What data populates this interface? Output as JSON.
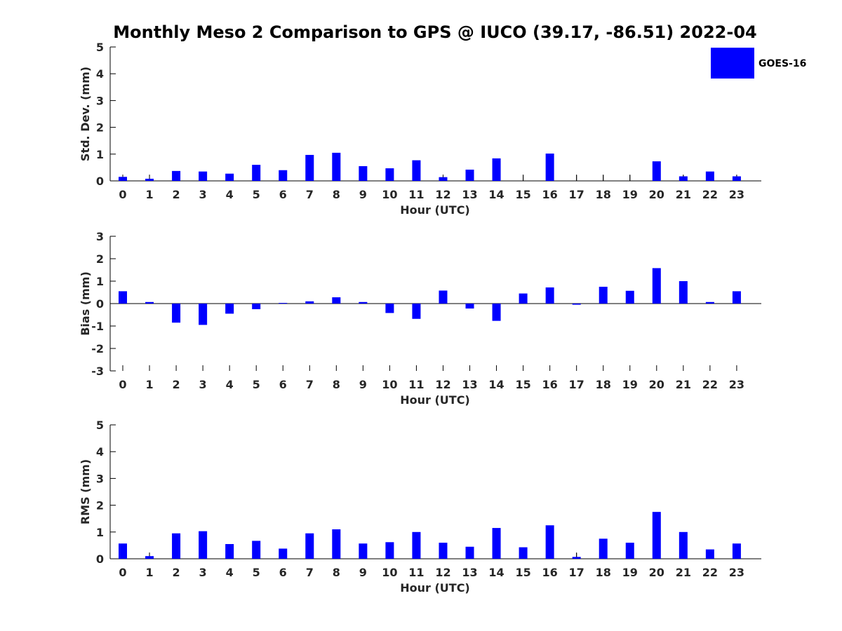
{
  "title": "Monthly Meso 2 Comparison to GPS @ IUCO (39.17, -86.51) 2022-04",
  "legend": {
    "label": "GOES-16",
    "color": "#0000ff",
    "placement": "top-right"
  },
  "chart_data": [
    {
      "type": "bar",
      "xlabel": "Hour (UTC)",
      "ylabel": "Std. Dev. (mm)",
      "ylim": [
        0,
        5
      ],
      "yticks": [
        0,
        1,
        2,
        3,
        4,
        5
      ],
      "categories": [
        "0",
        "1",
        "2",
        "3",
        "4",
        "5",
        "6",
        "7",
        "8",
        "9",
        "10",
        "11",
        "12",
        "13",
        "14",
        "15",
        "16",
        "17",
        "18",
        "19",
        "20",
        "21",
        "22",
        "23"
      ],
      "series": [
        {
          "name": "GOES-16",
          "values": [
            0.15,
            0.08,
            0.37,
            0.35,
            0.27,
            0.6,
            0.4,
            0.97,
            1.05,
            0.55,
            0.47,
            0.77,
            0.14,
            0.42,
            0.84,
            0,
            1.02,
            0,
            0,
            0,
            0.73,
            0.17,
            0.35,
            0.17
          ]
        }
      ],
      "error_tick_hours": [
        0,
        1,
        12,
        15,
        17,
        18,
        19,
        21,
        23
      ]
    },
    {
      "type": "bar",
      "xlabel": "Hour (UTC)",
      "ylabel": "Bias (mm)",
      "ylim": [
        -3,
        3
      ],
      "yticks": [
        -3,
        -2,
        -1,
        0,
        1,
        2,
        3
      ],
      "categories": [
        "0",
        "1",
        "2",
        "3",
        "4",
        "5",
        "6",
        "7",
        "8",
        "9",
        "10",
        "11",
        "12",
        "13",
        "14",
        "15",
        "16",
        "17",
        "18",
        "19",
        "20",
        "21",
        "22",
        "23"
      ],
      "series": [
        {
          "name": "GOES-16",
          "values": [
            0.55,
            0.07,
            -0.85,
            -0.95,
            -0.45,
            -0.25,
            0.03,
            0.1,
            0.28,
            0.07,
            -0.42,
            -0.68,
            0.58,
            -0.22,
            -0.77,
            0.45,
            0.72,
            -0.05,
            0.75,
            0.57,
            1.58,
            1.0,
            0.07,
            0.55
          ]
        }
      ],
      "error_tick_hours": []
    },
    {
      "type": "bar",
      "xlabel": "Hour (UTC)",
      "ylabel": "RMS (mm)",
      "ylim": [
        0,
        5
      ],
      "yticks": [
        0,
        1,
        2,
        3,
        4,
        5
      ],
      "categories": [
        "0",
        "1",
        "2",
        "3",
        "4",
        "5",
        "6",
        "7",
        "8",
        "9",
        "10",
        "11",
        "12",
        "13",
        "14",
        "15",
        "16",
        "17",
        "18",
        "19",
        "20",
        "21",
        "22",
        "23"
      ],
      "series": [
        {
          "name": "GOES-16",
          "values": [
            0.57,
            0.1,
            0.95,
            1.03,
            0.55,
            0.67,
            0.38,
            0.95,
            1.1,
            0.57,
            0.62,
            1.0,
            0.6,
            0.45,
            1.15,
            0.43,
            1.25,
            0.07,
            0.75,
            0.6,
            1.75,
            1.0,
            0.35,
            0.57
          ]
        }
      ],
      "error_tick_hours": [
        1,
        17
      ]
    }
  ]
}
